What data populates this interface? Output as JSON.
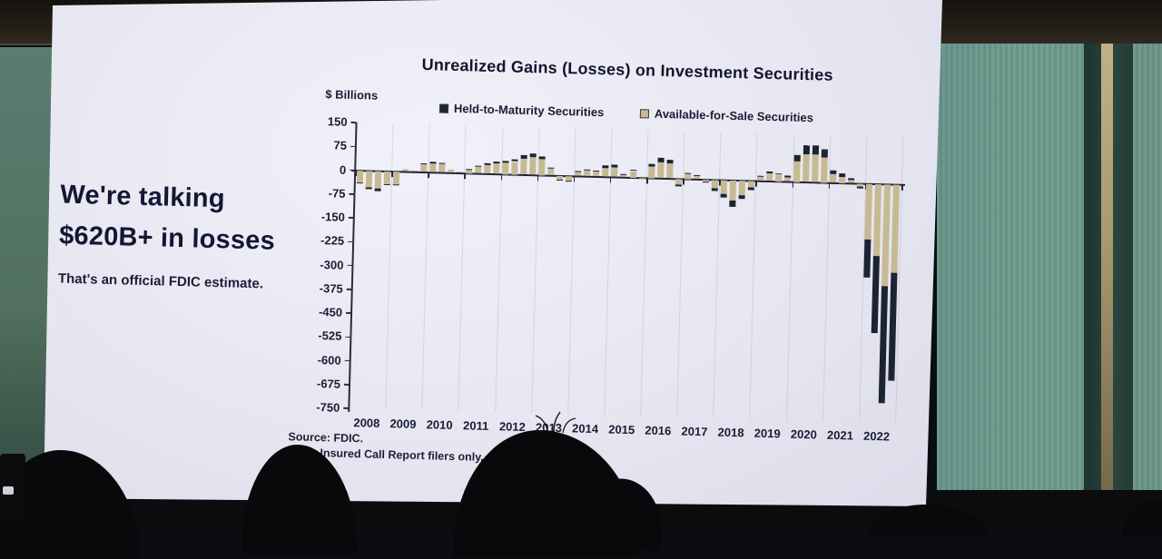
{
  "scene": {
    "setting": "photograph of a presentation slide projected in a dark conference room",
    "colors": {
      "slide_background": "#e9e9f3",
      "text_navy": "#1b1b36",
      "htm_bar": "#1c2433",
      "afs_bar": "#c7ba92",
      "wall_left_green": "#5b7d71",
      "wall_right_green": "#6f9c8e",
      "wall_panel_dark": "#2a463f",
      "wall_stripe_tan": "#a89a6f",
      "silhouette_black": "#08090b"
    }
  },
  "slide": {
    "headline_line1": "We're talking",
    "headline_line2": "$620B+ in losses",
    "subheadline": "That's an official FDIC estimate."
  },
  "chart_data": {
    "type": "bar",
    "stacked": true,
    "title": "Unrealized Gains (Losses) on Investment Securities",
    "unit_label": "$ Billions",
    "ylim": [
      -750,
      150
    ],
    "y_ticks": [
      150,
      75,
      0,
      -75,
      -150,
      -225,
      -300,
      -375,
      -450,
      -525,
      -600,
      -675,
      -750
    ],
    "grid": "faint vertical year separators, heavy zero line",
    "legend_position": "top",
    "x_years": [
      "2008",
      "2009",
      "2010",
      "2011",
      "2012",
      "2013",
      "2014",
      "2015",
      "2016",
      "2017",
      "2018",
      "2019",
      "2020",
      "2021",
      "2022"
    ],
    "quarters_per_year": 4,
    "units": "USD billions, quarterly",
    "series": [
      {
        "name": "Held-to-Maturity Securities",
        "color": "#1c2433",
        "values": [
          -4,
          -6,
          -7,
          -5,
          -5,
          1,
          1,
          4,
          5,
          4,
          1,
          0,
          2,
          4,
          5,
          6,
          7,
          8,
          11,
          12,
          10,
          4,
          -3,
          -4,
          2,
          4,
          4,
          8,
          9,
          2,
          5,
          -1,
          10,
          14,
          13,
          -6,
          5,
          3,
          -2,
          -8,
          -12,
          -20,
          -14,
          -8,
          3,
          6,
          5,
          4,
          20,
          28,
          28,
          25,
          12,
          10,
          6,
          -6,
          -120,
          -241,
          -368,
          -341
        ]
      },
      {
        "name": "Available-for-Sale Securities",
        "color": "#c7ba92",
        "values": [
          -38,
          -54,
          -57,
          -40,
          -40,
          7,
          4,
          24,
          27,
          26,
          9,
          3,
          10,
          21,
          27,
          32,
          35,
          40,
          51,
          56,
          50,
          21,
          -12,
          -16,
          13,
          18,
          16,
          27,
          31,
          8,
          20,
          -4,
          35,
          51,
          47,
          -19,
          15,
          9,
          -8,
          -27,
          -43,
          -65,
          -46,
          -22,
          12,
          24,
          20,
          14,
          65,
          87,
          87,
          80,
          28,
          20,
          9,
          -9,
          -175,
          -228,
          -321,
          -279
        ]
      }
    ],
    "source": "Source: FDIC.",
    "note": "Note: Insured Call Report filers only."
  }
}
